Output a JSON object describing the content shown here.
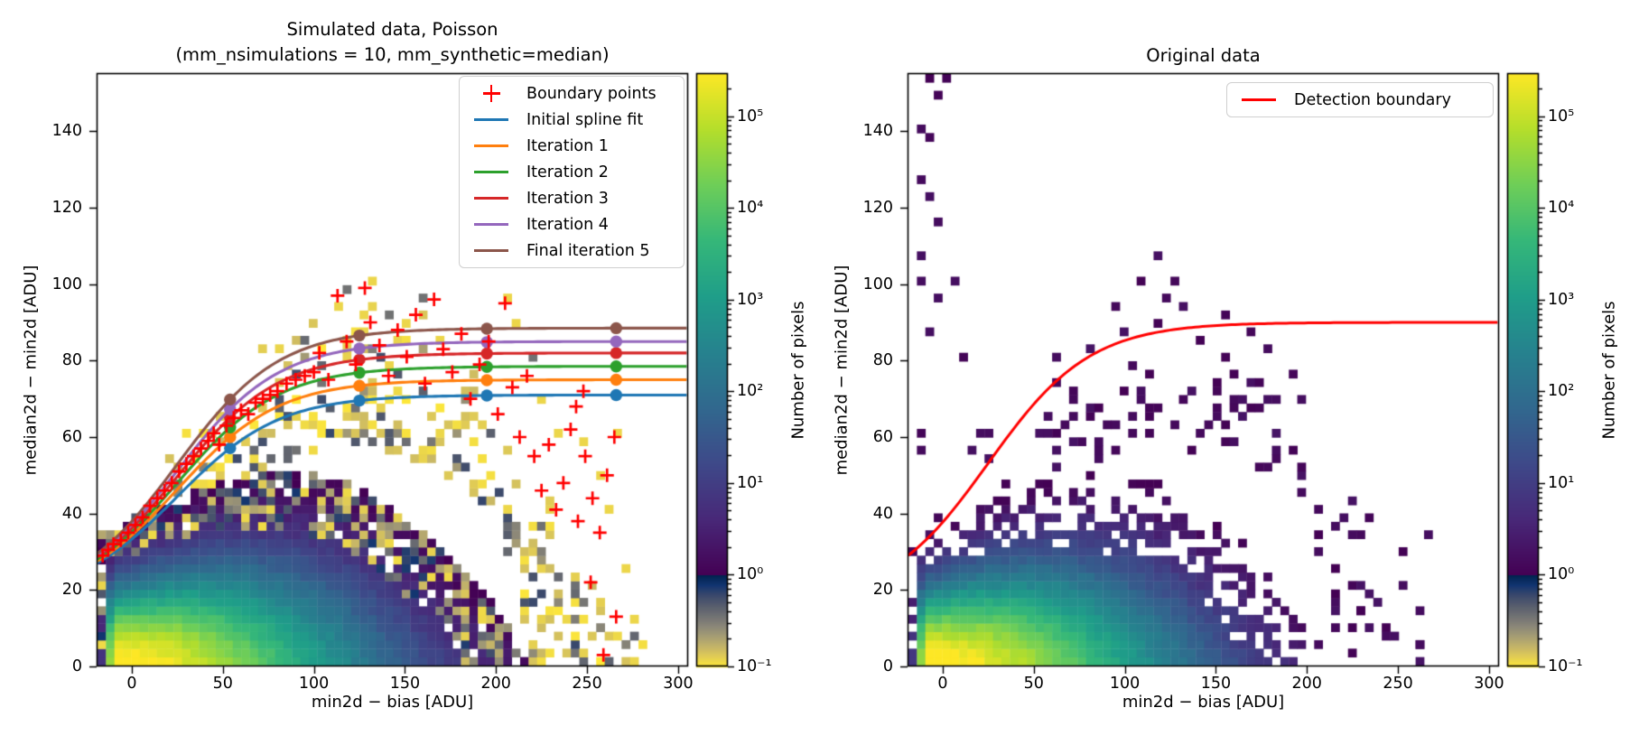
{
  "chart_data": {
    "type": "heatmap",
    "panels": [
      {
        "title_lines": [
          "Simulated data, Poisson",
          "(mm_nsimulations = 10, mm_synthetic=median)"
        ],
        "xlabel": "min2d − bias  [ADU]",
        "ylabel": "median2d − min2d  [ADU]",
        "xlim": [
          -19.3,
          305.5
        ],
        "ylim": [
          0,
          155.2
        ],
        "xticks": [
          0,
          50,
          100,
          150,
          200,
          250,
          300
        ],
        "yticks": [
          0,
          20,
          40,
          60,
          80,
          100,
          120,
          140
        ],
        "legend": {
          "items": [
            {
              "label": "Boundary points",
              "marker": "plus",
              "color": "#ff0000"
            },
            {
              "label": "Initial spline fit",
              "marker": "line",
              "color": "#1f77b4"
            },
            {
              "label": "Iteration 1",
              "marker": "line",
              "color": "#ff7f0e"
            },
            {
              "label": "Iteration 2",
              "marker": "line",
              "color": "#2ca02c"
            },
            {
              "label": "Iteration 3",
              "marker": "line",
              "color": "#d62728"
            },
            {
              "label": "Iteration 4",
              "marker": "line",
              "color": "#9467bd"
            },
            {
              "label": "Final iteration 5",
              "marker": "line",
              "color": "#8c564b"
            }
          ]
        },
        "splines": [
          {
            "name": "Initial spline fit",
            "color": "#1f77b4",
            "start": 27.0,
            "plateau": 71.0
          },
          {
            "name": "Iteration 1",
            "color": "#ff7f0e",
            "start": 27.5,
            "plateau": 75.0
          },
          {
            "name": "Iteration 2",
            "color": "#2ca02c",
            "start": 28.0,
            "plateau": 78.5
          },
          {
            "name": "Iteration 3",
            "color": "#d62728",
            "start": 28.5,
            "plateau": 82.0
          },
          {
            "name": "Iteration 4",
            "color": "#9467bd",
            "start": 29.0,
            "plateau": 85.0
          },
          {
            "name": "Final iteration 5",
            "color": "#8c564b",
            "start": 29.5,
            "plateau": 88.5
          }
        ],
        "spline_knots_x": [
          54,
          125,
          195,
          266
        ],
        "boundary_points": [
          [
            -16,
            29
          ],
          [
            -13,
            30.5
          ],
          [
            -10,
            32
          ],
          [
            -6,
            33
          ],
          [
            -2,
            35
          ],
          [
            2,
            37
          ],
          [
            6,
            39
          ],
          [
            10,
            42
          ],
          [
            14,
            44
          ],
          [
            18,
            46
          ],
          [
            22,
            48
          ],
          [
            26,
            51
          ],
          [
            30,
            53
          ],
          [
            34,
            55
          ],
          [
            38,
            57
          ],
          [
            42,
            59
          ],
          [
            45,
            61
          ],
          [
            48,
            58
          ],
          [
            52,
            63
          ],
          [
            56,
            65
          ],
          [
            60,
            67
          ],
          [
            64,
            66
          ],
          [
            68,
            69
          ],
          [
            72,
            70
          ],
          [
            76,
            71
          ],
          [
            80,
            72
          ],
          [
            85,
            74
          ],
          [
            90,
            75
          ],
          [
            95,
            76
          ],
          [
            100,
            77
          ],
          [
            103,
            82
          ],
          [
            108,
            75
          ],
          [
            113,
            97
          ],
          [
            118,
            85
          ],
          [
            123,
            79
          ],
          [
            128,
            99
          ],
          [
            131,
            90
          ],
          [
            136,
            84
          ],
          [
            141,
            76
          ],
          [
            146,
            88
          ],
          [
            151,
            81
          ],
          [
            156,
            92
          ],
          [
            161,
            74
          ],
          [
            166,
            96
          ],
          [
            171,
            83
          ],
          [
            176,
            77
          ],
          [
            181,
            87
          ],
          [
            186,
            70
          ],
          [
            191,
            79
          ],
          [
            196,
            85
          ],
          [
            201,
            66
          ],
          [
            205,
            95
          ],
          [
            209,
            73
          ],
          [
            213,
            60
          ],
          [
            217,
            76
          ],
          [
            221,
            55
          ],
          [
            225,
            46
          ],
          [
            229,
            58
          ],
          [
            233,
            41
          ],
          [
            237,
            48
          ],
          [
            241,
            62
          ],
          [
            245,
            38
          ],
          [
            249,
            55
          ],
          [
            253,
            44
          ],
          [
            257,
            35
          ],
          [
            261,
            50
          ],
          [
            265,
            60
          ],
          [
            252,
            22
          ],
          [
            259,
            3
          ],
          [
            266,
            13
          ],
          [
            248,
            72
          ],
          [
            244,
            68
          ]
        ],
        "high_outlier_bins": [
          [
            113,
            95
          ],
          [
            118,
            99
          ],
          [
            133,
            101
          ],
          [
            127,
            92
          ],
          [
            152,
            90
          ],
          [
            160,
            97
          ],
          [
            170,
            86
          ],
          [
            205,
            97
          ],
          [
            126,
            88
          ],
          [
            143,
            93
          ],
          [
            210,
            90
          ],
          [
            218,
            82
          ],
          [
            226,
            70
          ],
          [
            236,
            62
          ],
          [
            246,
            58
          ],
          [
            256,
            50
          ],
          [
            262,
            42
          ],
          [
            268,
            60
          ],
          [
            270,
            25
          ],
          [
            274,
            12
          ]
        ]
      },
      {
        "title_lines": [
          "Original data"
        ],
        "xlabel": "min2d − bias  [ADU]",
        "ylabel": "median2d − min2d  [ADU]",
        "xlim": [
          -19.3,
          305.5
        ],
        "ylim": [
          0,
          155.2
        ],
        "xticks": [
          0,
          50,
          100,
          150,
          200,
          250,
          300
        ],
        "yticks": [
          0,
          20,
          40,
          60,
          80,
          100,
          120,
          140
        ],
        "legend": {
          "items": [
            {
              "label": "Detection boundary",
              "marker": "line",
              "color": "#ff0000"
            }
          ]
        },
        "detection_boundary": {
          "color": "#ff0000",
          "start": 29.0,
          "plateau": 90.0
        },
        "outlier_bins": [
          [
            -8,
            154
          ],
          [
            -4,
            150
          ],
          [
            3,
            155
          ],
          [
            -10,
            140
          ],
          [
            -6,
            138
          ],
          [
            -12,
            128
          ],
          [
            -8,
            122
          ],
          [
            -4,
            117
          ],
          [
            -14,
            108
          ],
          [
            -10,
            101
          ],
          [
            -2,
            97
          ],
          [
            5,
            100
          ],
          [
            -6,
            88
          ],
          [
            12,
            80
          ],
          [
            -10,
            62
          ],
          [
            -12,
            57
          ],
          [
            20,
            62
          ],
          [
            24,
            60
          ],
          [
            18,
            57
          ],
          [
            55,
            62
          ],
          [
            58,
            62
          ],
          [
            61,
            62
          ],
          [
            64,
            80
          ],
          [
            95,
            95
          ],
          [
            110,
            100
          ],
          [
            120,
            108
          ],
          [
            125,
            97
          ],
          [
            128,
            101
          ],
          [
            133,
            95
          ],
          [
            118,
            90
          ],
          [
            140,
            85
          ],
          [
            150,
            75
          ],
          [
            152,
            68
          ],
          [
            148,
            63
          ],
          [
            155,
            80
          ],
          [
            160,
            70
          ],
          [
            230,
            15
          ],
          [
            243,
            9
          ],
          [
            255,
            29
          ],
          [
            262,
            5
          ],
          [
            252,
            22
          ],
          [
            265,
            35
          ],
          [
            260,
            15
          ]
        ]
      }
    ],
    "colorbar": {
      "label": "Number of pixels",
      "log_min_exp": -1,
      "log_max_exp": 5.47,
      "split_exp": 0,
      "major_tick_labels": [
        "10⁵",
        "10⁴",
        "10³",
        "10²",
        "10¹",
        "10⁰",
        "10⁻¹"
      ],
      "major_tick_exps": [
        5,
        4,
        3,
        2,
        1,
        0,
        -1
      ],
      "upper_colormap": "viridis",
      "lower_colormap": "cividis_reversed"
    },
    "sigmoid": {
      "x_start": -19,
      "center": 25,
      "width": 28
    },
    "density_model": {
      "peak_log10": 5.47,
      "A": 6.2,
      "C": 0.46,
      "ux_scale": 239,
      "dome_contour": [
        [
          -19,
          30
        ],
        [
          0,
          34
        ],
        [
          25,
          41
        ],
        [
          50,
          47
        ],
        [
          75,
          52
        ],
        [
          100,
          56
        ],
        [
          125,
          58
        ],
        [
          150,
          55
        ],
        [
          170,
          51
        ],
        [
          185,
          46
        ],
        [
          195,
          41
        ],
        [
          205,
          32
        ],
        [
          212,
          20
        ],
        [
          216,
          8
        ],
        [
          218,
          0
        ]
      ]
    }
  }
}
